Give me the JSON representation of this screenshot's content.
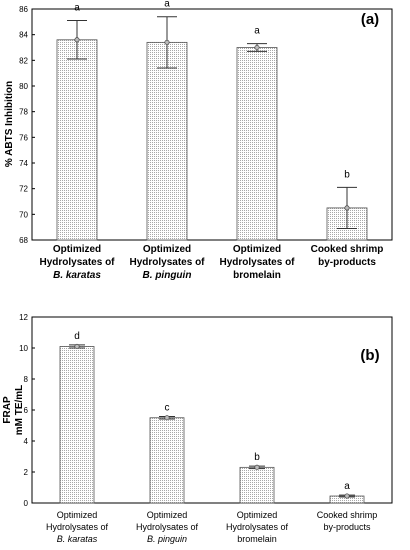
{
  "chart_data": [
    {
      "type": "bar",
      "panel_label": "(a)",
      "categories": [
        [
          "Optimized",
          "Hydrolysates of",
          "B. karatas"
        ],
        [
          "Optimized",
          "Hydrolysates of",
          "B. pinguin"
        ],
        [
          "Optimized",
          "Hydrolysates of",
          "bromelain"
        ],
        [
          "Cooked shrimp",
          "by-products"
        ]
      ],
      "italic_last_line": [
        true,
        true,
        false,
        false
      ],
      "values": [
        83.6,
        83.4,
        83.0,
        70.5
      ],
      "errors": [
        1.5,
        2.0,
        0.3,
        1.6
      ],
      "significance": [
        "a",
        "a",
        "a",
        "b"
      ],
      "ylabel": "% ABTS Inhibition",
      "ylim": [
        68,
        86
      ],
      "yticks": [
        68,
        70,
        72,
        74,
        76,
        78,
        80,
        82,
        84,
        86
      ],
      "pattern_color": "#9a9a9a"
    },
    {
      "type": "bar",
      "panel_label": "(b)",
      "categories": [
        [
          "Optimized",
          "Hydrolysates of",
          "B. karatas"
        ],
        [
          "Optimized",
          "Hydrolysates of",
          "B. pinguin"
        ],
        [
          "Optimized",
          "Hydrolysates of",
          "bromelain"
        ],
        [
          "Cooked shrimp",
          "by-products"
        ]
      ],
      "italic_last_line": [
        true,
        true,
        false,
        false
      ],
      "values": [
        10.1,
        5.5,
        2.3,
        0.45
      ],
      "errors": [
        0.1,
        0.08,
        0.08,
        0.06
      ],
      "significance": [
        "d",
        "c",
        "b",
        "a"
      ],
      "ylabel": [
        "FRAP",
        "mM TE/mL"
      ],
      "ylim": [
        0,
        12
      ],
      "yticks": [
        0,
        2,
        4,
        6,
        8,
        10,
        12
      ],
      "pattern_color": "#9a9a9a"
    }
  ]
}
